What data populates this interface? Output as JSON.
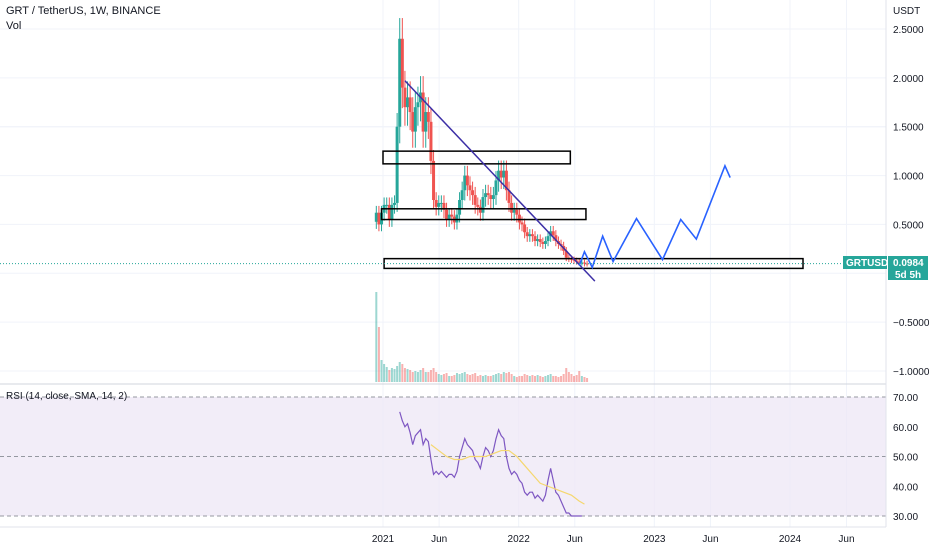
{
  "header": {
    "title": "GRT / TetherUS, 1W, BINANCE",
    "volume_label": "Vol",
    "currency": "USDT"
  },
  "price_axis": {
    "ticks": [
      "2.5000",
      "2.0000",
      "1.5000",
      "1.0000",
      "0.5000",
      "−0.5000",
      "−1.0000"
    ],
    "tick_values": [
      2.5,
      2.0,
      1.5,
      1.0,
      0.5,
      -0.5,
      -1.0
    ]
  },
  "last_price": {
    "symbol": "GRTUSDT",
    "value": "0.0984",
    "countdown": "5d 5h",
    "price": 0.0984
  },
  "rsi": {
    "label": "RSI (14, close, SMA, 14, 2)",
    "ticks": [
      "70.00",
      "60.00",
      "50.00",
      "40.00",
      "30.00"
    ],
    "tick_values": [
      70,
      60,
      50,
      40,
      30
    ]
  },
  "time_axis": {
    "labels": [
      "2021",
      "Jun",
      "2022",
      "Jun",
      "2023",
      "Jun",
      "2024",
      "Jun"
    ],
    "dates": [
      "2021-01-01",
      "2021-06-01",
      "2022-01-01",
      "2022-06-01",
      "2023-01-01",
      "2023-06-01",
      "2024-01-01",
      "2024-06-01"
    ]
  },
  "colors": {
    "up": "#26a69a",
    "down": "#ef5350",
    "trendline": "#3c2fa6",
    "projection": "#2962ff",
    "rsi_line": "#7e57c2",
    "rsi_ma": "#f5d76e",
    "rsi_band": "#ede7f6",
    "badge": "#26a69a"
  },
  "chart_data": {
    "type": "candlestick",
    "xaxis": "date",
    "price_points": [
      [
        "2020-12-14",
        0.62
      ],
      [
        "2020-12-21",
        0.5
      ],
      [
        "2020-12-28",
        0.62
      ],
      [
        "2021-01-04",
        0.7
      ],
      [
        "2021-01-11",
        0.7
      ],
      [
        "2021-01-18",
        0.55
      ],
      [
        "2021-01-25",
        0.7
      ],
      [
        "2021-02-01",
        0.72
      ],
      [
        "2021-02-08",
        1.5
      ],
      [
        "2021-02-15",
        2.4
      ],
      [
        "2021-02-22",
        1.9
      ],
      [
        "2021-03-01",
        1.7
      ],
      [
        "2021-03-08",
        1.8
      ],
      [
        "2021-03-15",
        1.65
      ],
      [
        "2021-03-22",
        1.45
      ],
      [
        "2021-03-29",
        1.7
      ],
      [
        "2021-04-05",
        1.75
      ],
      [
        "2021-04-12",
        1.85
      ],
      [
        "2021-04-19",
        1.45
      ],
      [
        "2021-04-26",
        1.65
      ],
      [
        "2021-05-03",
        1.55
      ],
      [
        "2021-05-10",
        1.15
      ],
      [
        "2021-05-17",
        0.75
      ],
      [
        "2021-05-24",
        0.68
      ],
      [
        "2021-05-31",
        0.72
      ],
      [
        "2021-06-07",
        0.72
      ],
      [
        "2021-06-14",
        0.65
      ],
      [
        "2021-06-21",
        0.55
      ],
      [
        "2021-06-28",
        0.6
      ],
      [
        "2021-07-05",
        0.58
      ],
      [
        "2021-07-12",
        0.52
      ],
      [
        "2021-07-19",
        0.6
      ],
      [
        "2021-07-26",
        0.75
      ],
      [
        "2021-08-02",
        0.85
      ],
      [
        "2021-08-09",
        1.0
      ],
      [
        "2021-08-16",
        0.9
      ],
      [
        "2021-08-23",
        0.85
      ],
      [
        "2021-08-30",
        0.8
      ],
      [
        "2021-09-06",
        0.7
      ],
      [
        "2021-09-13",
        0.68
      ],
      [
        "2021-09-20",
        0.62
      ],
      [
        "2021-09-27",
        0.78
      ],
      [
        "2021-10-04",
        0.82
      ],
      [
        "2021-10-11",
        0.8
      ],
      [
        "2021-10-18",
        0.76
      ],
      [
        "2021-10-25",
        0.8
      ],
      [
        "2021-11-01",
        0.95
      ],
      [
        "2021-11-08",
        1.05
      ],
      [
        "2021-11-15",
        0.98
      ],
      [
        "2021-11-22",
        1.05
      ],
      [
        "2021-11-29",
        0.85
      ],
      [
        "2021-12-06",
        0.72
      ],
      [
        "2021-12-13",
        0.62
      ],
      [
        "2021-12-20",
        0.65
      ],
      [
        "2021-12-27",
        0.6
      ],
      [
        "2022-01-03",
        0.52
      ],
      [
        "2022-01-10",
        0.5
      ],
      [
        "2022-01-17",
        0.42
      ],
      [
        "2022-01-24",
        0.38
      ],
      [
        "2022-01-31",
        0.4
      ],
      [
        "2022-02-07",
        0.38
      ],
      [
        "2022-02-14",
        0.33
      ],
      [
        "2022-02-21",
        0.35
      ],
      [
        "2022-02-28",
        0.32
      ],
      [
        "2022-03-07",
        0.3
      ],
      [
        "2022-03-14",
        0.33
      ],
      [
        "2022-03-21",
        0.38
      ],
      [
        "2022-03-28",
        0.43
      ],
      [
        "2022-04-04",
        0.39
      ],
      [
        "2022-04-11",
        0.33
      ],
      [
        "2022-04-18",
        0.3
      ],
      [
        "2022-04-25",
        0.28
      ],
      [
        "2022-05-02",
        0.23
      ],
      [
        "2022-05-09",
        0.16
      ],
      [
        "2022-05-16",
        0.15
      ],
      [
        "2022-05-23",
        0.14
      ],
      [
        "2022-05-30",
        0.13
      ],
      [
        "2022-06-06",
        0.12
      ],
      [
        "2022-06-13",
        0.11
      ],
      [
        "2022-06-20",
        0.11
      ],
      [
        "2022-06-27",
        0.1
      ],
      [
        "2022-07-04",
        0.0984
      ]
    ],
    "volume_points": [
      [
        "2020-12-14",
        0.9
      ],
      [
        "2020-12-21",
        0.55
      ],
      [
        "2020-12-28",
        0.22
      ],
      [
        "2021-01-04",
        0.18
      ],
      [
        "2021-01-11",
        0.15
      ],
      [
        "2021-01-18",
        0.12
      ],
      [
        "2021-01-25",
        0.14
      ],
      [
        "2021-02-01",
        0.13
      ],
      [
        "2021-02-08",
        0.16
      ],
      [
        "2021-02-15",
        0.2
      ],
      [
        "2021-02-22",
        0.18
      ],
      [
        "2021-03-01",
        0.14
      ],
      [
        "2021-03-08",
        0.13
      ],
      [
        "2021-03-15",
        0.12
      ],
      [
        "2021-03-22",
        0.1
      ],
      [
        "2021-03-29",
        0.11
      ],
      [
        "2021-04-05",
        0.1
      ],
      [
        "2021-04-12",
        0.12
      ],
      [
        "2021-04-19",
        0.14
      ],
      [
        "2021-04-26",
        0.1
      ],
      [
        "2021-05-03",
        0.1
      ],
      [
        "2021-05-10",
        0.12
      ],
      [
        "2021-05-17",
        0.14
      ],
      [
        "2021-05-24",
        0.1
      ],
      [
        "2021-05-31",
        0.08
      ],
      [
        "2021-06-07",
        0.07
      ],
      [
        "2021-06-14",
        0.08
      ],
      [
        "2021-06-21",
        0.09
      ],
      [
        "2021-06-28",
        0.06
      ],
      [
        "2021-07-05",
        0.06
      ],
      [
        "2021-07-12",
        0.07
      ],
      [
        "2021-07-19",
        0.09
      ],
      [
        "2021-07-26",
        0.08
      ],
      [
        "2021-08-02",
        0.09
      ],
      [
        "2021-08-09",
        0.1
      ],
      [
        "2021-08-16",
        0.08
      ],
      [
        "2021-08-23",
        0.07
      ],
      [
        "2021-08-30",
        0.08
      ],
      [
        "2021-09-06",
        0.09
      ],
      [
        "2021-09-13",
        0.06
      ],
      [
        "2021-09-20",
        0.07
      ],
      [
        "2021-09-27",
        0.06
      ],
      [
        "2021-10-04",
        0.07
      ],
      [
        "2021-10-11",
        0.06
      ],
      [
        "2021-10-18",
        0.06
      ],
      [
        "2021-10-25",
        0.07
      ],
      [
        "2021-11-01",
        0.08
      ],
      [
        "2021-11-08",
        0.09
      ],
      [
        "2021-11-15",
        0.08
      ],
      [
        "2021-11-22",
        0.1
      ],
      [
        "2021-11-29",
        0.09
      ],
      [
        "2021-12-06",
        0.1
      ],
      [
        "2021-12-13",
        0.08
      ],
      [
        "2021-12-20",
        0.06
      ],
      [
        "2021-12-27",
        0.05
      ],
      [
        "2022-01-03",
        0.06
      ],
      [
        "2022-01-10",
        0.06
      ],
      [
        "2022-01-17",
        0.08
      ],
      [
        "2022-01-24",
        0.07
      ],
      [
        "2022-01-31",
        0.06
      ],
      [
        "2022-02-07",
        0.07
      ],
      [
        "2022-02-14",
        0.06
      ],
      [
        "2022-02-21",
        0.07
      ],
      [
        "2022-02-28",
        0.06
      ],
      [
        "2022-03-07",
        0.05
      ],
      [
        "2022-03-14",
        0.06
      ],
      [
        "2022-03-21",
        0.07
      ],
      [
        "2022-03-28",
        0.08
      ],
      [
        "2022-04-04",
        0.06
      ],
      [
        "2022-04-11",
        0.06
      ],
      [
        "2022-04-18",
        0.05
      ],
      [
        "2022-04-25",
        0.06
      ],
      [
        "2022-05-02",
        0.08
      ],
      [
        "2022-05-09",
        0.14
      ],
      [
        "2022-05-16",
        0.1
      ],
      [
        "2022-05-23",
        0.08
      ],
      [
        "2022-05-30",
        0.06
      ],
      [
        "2022-06-06",
        0.07
      ],
      [
        "2022-06-13",
        0.11
      ],
      [
        "2022-06-20",
        0.06
      ],
      [
        "2022-06-27",
        0.05
      ],
      [
        "2022-07-04",
        0.04
      ]
    ],
    "rsi_points": [
      [
        "2021-02-15",
        65
      ],
      [
        "2021-02-22",
        62
      ],
      [
        "2021-03-01",
        60
      ],
      [
        "2021-03-08",
        61
      ],
      [
        "2021-03-15",
        58
      ],
      [
        "2021-03-22",
        54
      ],
      [
        "2021-03-29",
        57
      ],
      [
        "2021-04-05",
        58
      ],
      [
        "2021-04-12",
        59
      ],
      [
        "2021-04-19",
        54
      ],
      [
        "2021-04-26",
        56
      ],
      [
        "2021-05-03",
        55
      ],
      [
        "2021-05-10",
        49
      ],
      [
        "2021-05-17",
        44
      ],
      [
        "2021-05-24",
        45
      ],
      [
        "2021-05-31",
        44
      ],
      [
        "2021-06-07",
        45
      ],
      [
        "2021-06-14",
        44
      ],
      [
        "2021-06-21",
        43
      ],
      [
        "2021-06-28",
        44
      ],
      [
        "2021-07-05",
        44
      ],
      [
        "2021-07-12",
        43
      ],
      [
        "2021-07-19",
        45
      ],
      [
        "2021-07-26",
        50
      ],
      [
        "2021-08-02",
        53
      ],
      [
        "2021-08-09",
        56
      ],
      [
        "2021-08-16",
        54
      ],
      [
        "2021-08-23",
        53
      ],
      [
        "2021-08-30",
        52
      ],
      [
        "2021-09-06",
        49
      ],
      [
        "2021-09-13",
        48
      ],
      [
        "2021-09-20",
        46
      ],
      [
        "2021-09-27",
        50
      ],
      [
        "2021-10-04",
        53
      ],
      [
        "2021-10-11",
        52
      ],
      [
        "2021-10-18",
        50
      ],
      [
        "2021-10-25",
        52
      ],
      [
        "2021-11-01",
        56
      ],
      [
        "2021-11-08",
        59
      ],
      [
        "2021-11-15",
        57
      ],
      [
        "2021-11-22",
        56
      ],
      [
        "2021-11-29",
        50
      ],
      [
        "2021-12-06",
        46
      ],
      [
        "2021-12-13",
        44
      ],
      [
        "2021-12-20",
        45
      ],
      [
        "2021-12-27",
        44
      ],
      [
        "2022-01-03",
        42
      ],
      [
        "2022-01-10",
        41
      ],
      [
        "2022-01-17",
        38
      ],
      [
        "2022-01-24",
        37
      ],
      [
        "2022-01-31",
        38
      ],
      [
        "2022-02-07",
        38
      ],
      [
        "2022-02-14",
        36
      ],
      [
        "2022-02-21",
        37
      ],
      [
        "2022-02-28",
        36
      ],
      [
        "2022-03-07",
        35
      ],
      [
        "2022-03-14",
        37
      ],
      [
        "2022-03-21",
        42
      ],
      [
        "2022-03-28",
        46
      ],
      [
        "2022-04-04",
        42
      ],
      [
        "2022-04-11",
        38
      ],
      [
        "2022-04-18",
        37
      ],
      [
        "2022-04-25",
        35
      ],
      [
        "2022-05-02",
        33
      ],
      [
        "2022-05-09",
        31
      ],
      [
        "2022-05-16",
        31
      ],
      [
        "2022-05-23",
        30
      ],
      [
        "2022-05-30",
        30
      ],
      [
        "2022-06-06",
        30
      ],
      [
        "2022-06-13",
        30
      ],
      [
        "2022-06-20",
        30
      ]
    ],
    "rsi_ma_points": [
      [
        "2021-05-10",
        54
      ],
      [
        "2021-05-31",
        52
      ],
      [
        "2021-06-21",
        50
      ],
      [
        "2021-07-12",
        49
      ],
      [
        "2021-08-02",
        49
      ],
      [
        "2021-08-23",
        50
      ],
      [
        "2021-09-13",
        50
      ],
      [
        "2021-10-04",
        50
      ],
      [
        "2021-10-25",
        51
      ],
      [
        "2021-11-15",
        52
      ],
      [
        "2021-12-06",
        52
      ],
      [
        "2021-12-27",
        50
      ],
      [
        "2022-01-17",
        47
      ],
      [
        "2022-02-07",
        44
      ],
      [
        "2022-02-28",
        41
      ],
      [
        "2022-03-21",
        40
      ],
      [
        "2022-04-11",
        39
      ],
      [
        "2022-05-02",
        38
      ],
      [
        "2022-05-23",
        37
      ],
      [
        "2022-06-13",
        35
      ],
      [
        "2022-06-27",
        34
      ]
    ],
    "boxes": [
      {
        "from": "2021-01-01",
        "to": "2022-05-20",
        "low": 1.12,
        "high": 1.25
      },
      {
        "from": "2020-12-28",
        "to": "2022-07-01",
        "low": 0.55,
        "high": 0.66
      },
      {
        "from": "2021-01-04",
        "to": "2024-02-05",
        "low": 0.05,
        "high": 0.15
      }
    ],
    "trendline": [
      [
        "2021-03-01",
        1.97
      ],
      [
        "2022-07-25",
        -0.08
      ]
    ],
    "projection": [
      [
        "2022-06-13",
        0.08
      ],
      [
        "2022-06-27",
        0.22
      ],
      [
        "2022-07-18",
        0.06
      ],
      [
        "2022-08-15",
        0.38
      ],
      [
        "2022-09-12",
        0.12
      ],
      [
        "2022-11-14",
        0.56
      ],
      [
        "2023-01-23",
        0.14
      ],
      [
        "2023-03-13",
        0.55
      ],
      [
        "2023-04-24",
        0.35
      ],
      [
        "2023-07-10",
        1.1
      ],
      [
        "2023-07-24",
        0.98
      ]
    ],
    "price_range": [
      -1.08,
      2.85
    ],
    "rsi_range": [
      28,
      72
    ],
    "rsi_bands": [
      30,
      50,
      70
    ]
  }
}
